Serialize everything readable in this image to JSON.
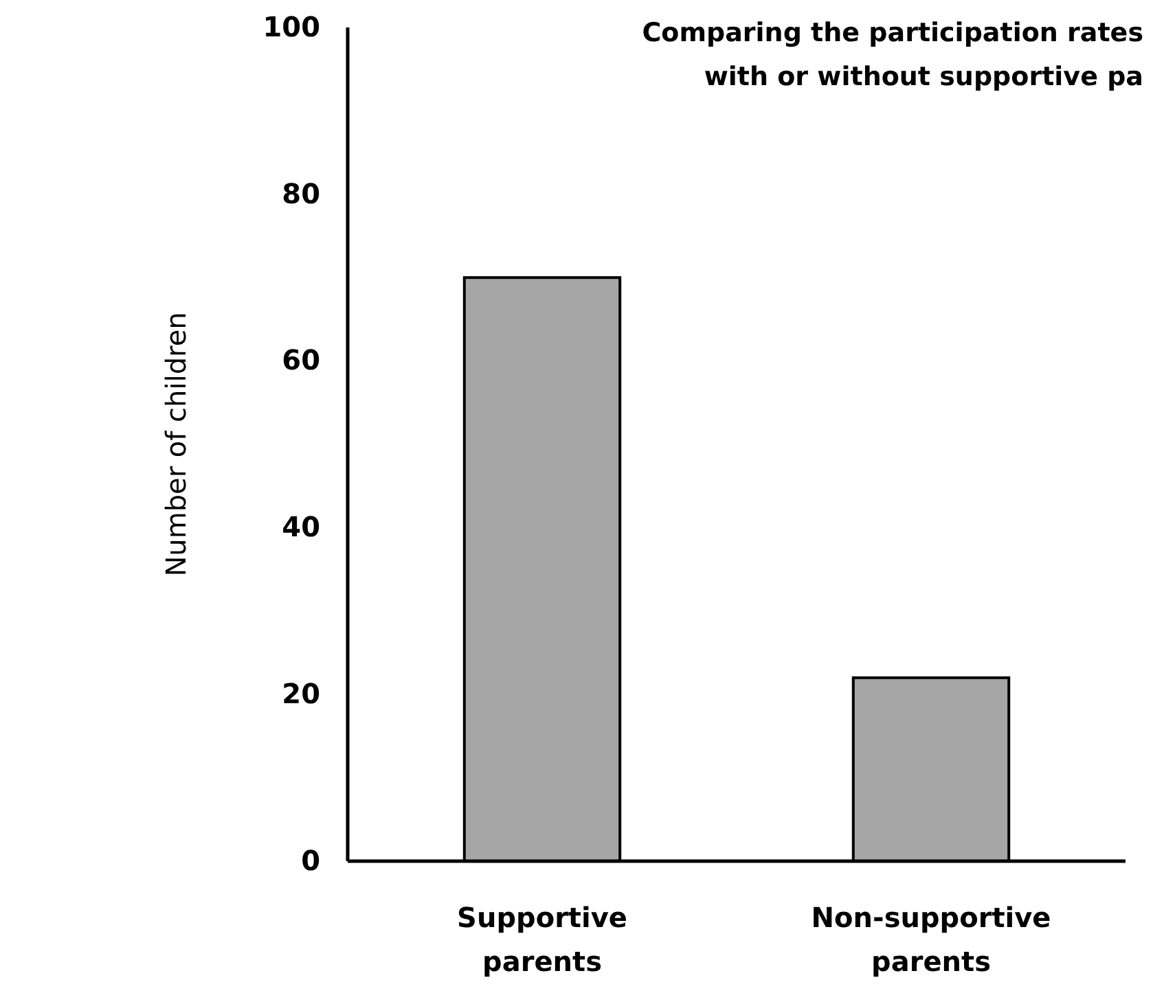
{
  "chart_data": {
    "type": "bar",
    "title": "Comparing the participation rates\nwith or without supportive pa",
    "ylabel": "Number of children",
    "categories": [
      "Supportive\nparents",
      "Non-supportive\nparents"
    ],
    "values": [
      70,
      22
    ],
    "color": "#a6a6a6",
    "ylim": [
      0,
      100
    ],
    "yticks": [
      0,
      20,
      40,
      60,
      80,
      100
    ],
    "grid": false
  }
}
